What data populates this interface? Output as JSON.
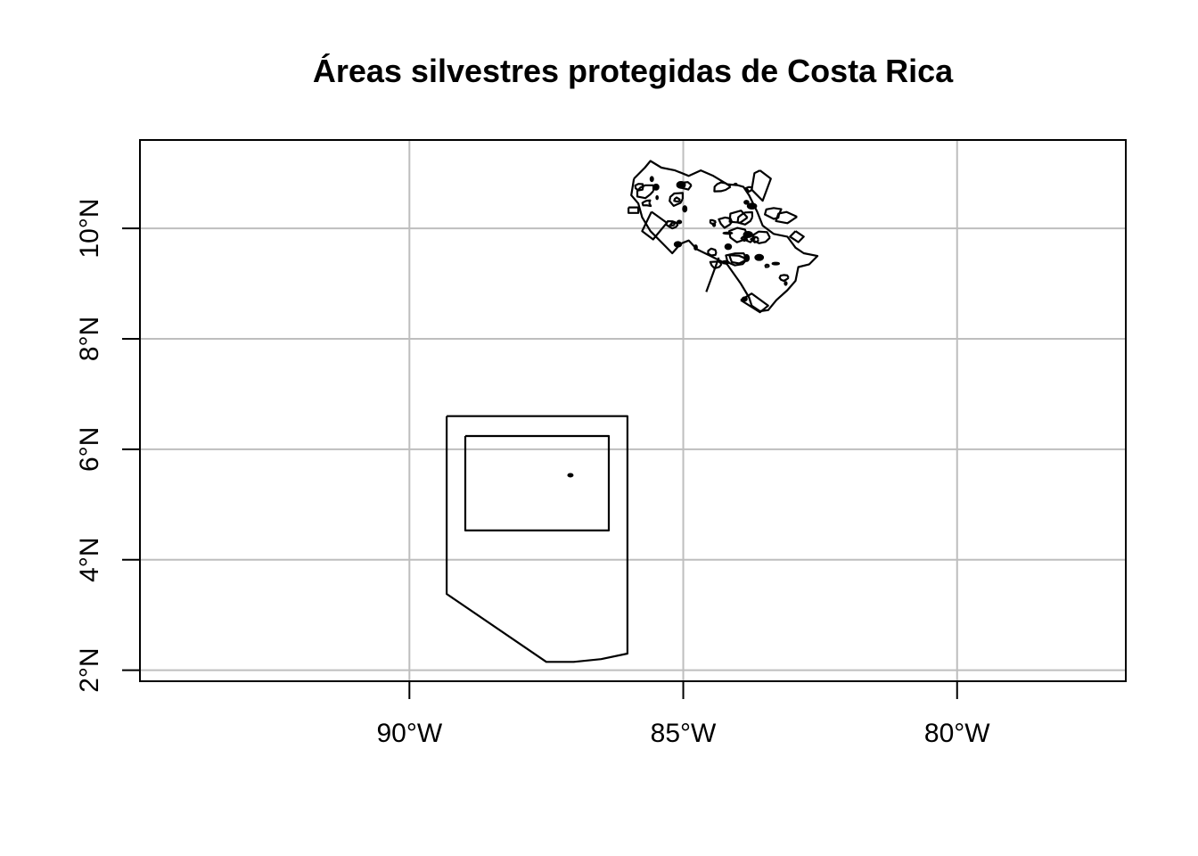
{
  "title": "Áreas silvestres protegidas de Costa Rica",
  "map": {
    "x_axis": {
      "ticks": [
        {
          "value": -90,
          "label": "90°W"
        },
        {
          "value": -85,
          "label": "85°W"
        },
        {
          "value": -80,
          "label": "80°W"
        }
      ]
    },
    "y_axis": {
      "ticks": [
        {
          "value": 2,
          "label": "2°N"
        },
        {
          "value": 4,
          "label": "4°N"
        },
        {
          "value": 6,
          "label": "6°N"
        },
        {
          "value": 8,
          "label": "8°N"
        },
        {
          "value": 10,
          "label": "10°N"
        }
      ]
    },
    "extent": {
      "lon": [
        -94.92,
        -76.92
      ],
      "lat": [
        1.8,
        11.6
      ]
    },
    "grid": true,
    "features": [
      {
        "type": "polygon",
        "name": "marine-zone-outer",
        "coords": [
          [
            -89.32,
            6.6
          ],
          [
            -86.02,
            6.6
          ],
          [
            -86.02,
            2.3
          ],
          [
            -86.5,
            2.2
          ],
          [
            -87.0,
            2.15
          ],
          [
            -87.5,
            2.15
          ],
          [
            -89.32,
            3.38
          ],
          [
            -89.32,
            6.6
          ]
        ]
      },
      {
        "type": "polygon",
        "name": "marine-zone-inner",
        "coords": [
          [
            -88.98,
            6.24
          ],
          [
            -86.36,
            6.24
          ],
          [
            -86.36,
            4.53
          ],
          [
            -88.98,
            4.53
          ],
          [
            -88.98,
            6.24
          ]
        ]
      },
      {
        "type": "dot",
        "name": "cocos-island",
        "coords": [
          -87.06,
          5.53
        ]
      }
    ],
    "costa_rica_outline": [
      [
        -85.9,
        10.9
      ],
      [
        -85.7,
        11.1
      ],
      [
        -85.6,
        11.22
      ],
      [
        -85.4,
        11.1
      ],
      [
        -85.15,
        11.05
      ],
      [
        -84.9,
        10.95
      ],
      [
        -84.68,
        11.05
      ],
      [
        -84.45,
        10.95
      ],
      [
        -84.2,
        10.8
      ],
      [
        -84.0,
        10.78
      ],
      [
        -83.9,
        10.75
      ],
      [
        -83.8,
        10.6
      ],
      [
        -83.65,
        10.3
      ],
      [
        -83.55,
        10.05
      ],
      [
        -83.35,
        9.9
      ],
      [
        -83.1,
        9.85
      ],
      [
        -82.95,
        9.65
      ],
      [
        -82.8,
        9.55
      ],
      [
        -82.55,
        9.5
      ],
      [
        -82.7,
        9.35
      ],
      [
        -82.9,
        9.3
      ],
      [
        -82.95,
        9.05
      ],
      [
        -83.1,
        8.88
      ],
      [
        -83.3,
        8.7
      ],
      [
        -83.45,
        8.52
      ],
      [
        -83.6,
        8.5
      ],
      [
        -83.75,
        8.6
      ],
      [
        -83.8,
        8.75
      ],
      [
        -83.95,
        9.0
      ],
      [
        -84.2,
        9.35
      ],
      [
        -84.5,
        9.5
      ],
      [
        -84.75,
        9.62
      ],
      [
        -84.9,
        9.78
      ],
      [
        -85.05,
        9.72
      ],
      [
        -85.2,
        9.55
      ],
      [
        -85.4,
        9.75
      ],
      [
        -85.6,
        9.95
      ],
      [
        -85.75,
        10.2
      ],
      [
        -85.82,
        10.45
      ],
      [
        -85.95,
        10.6
      ],
      [
        -85.9,
        10.9
      ]
    ]
  }
}
